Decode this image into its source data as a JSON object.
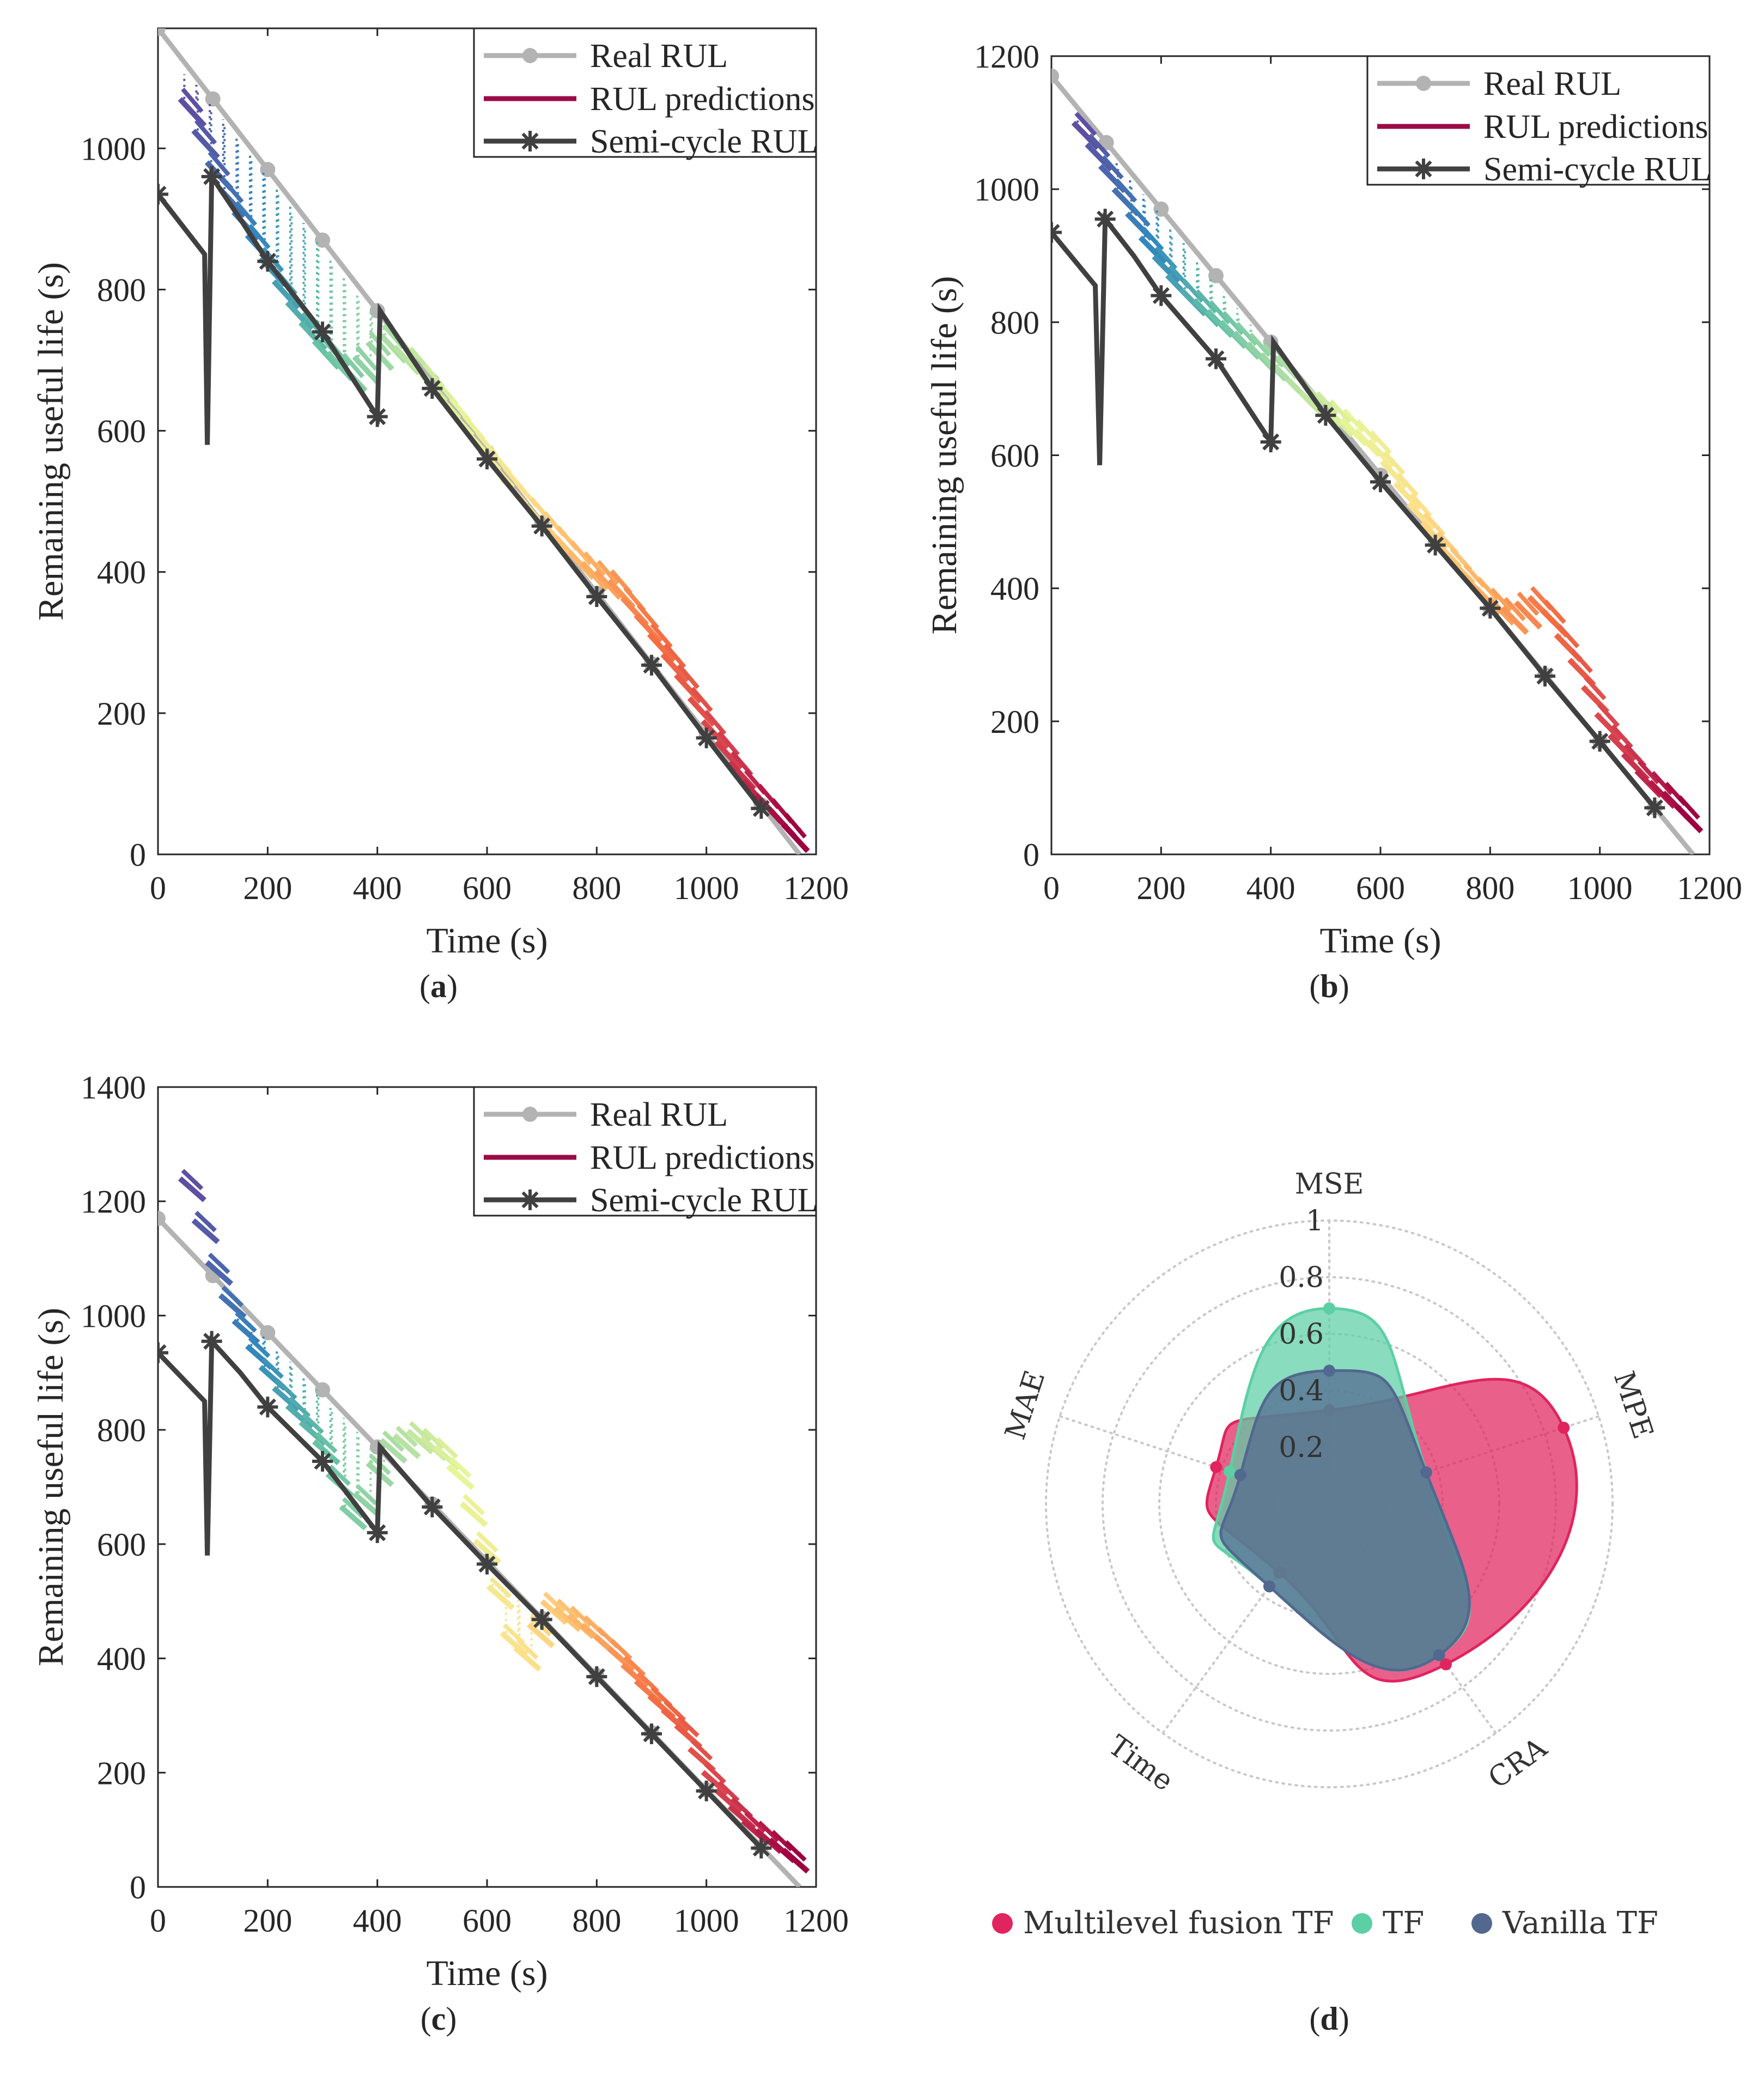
{
  "chart_data": [
    {
      "id": "a",
      "type": "line",
      "caption": "a",
      "xlabel": "Time (s)",
      "ylabel": "Remaining useful life (s)",
      "xlim": [
        0,
        1200
      ],
      "ylim": [
        0,
        1170
      ],
      "xticks": [
        "0",
        "200",
        "400",
        "600",
        "800",
        "1000",
        "1200"
      ],
      "yticks": [
        "0",
        "200",
        "400",
        "600",
        "800",
        "1000"
      ],
      "legend": [
        "Real RUL",
        "RUL predictions",
        "Semi-cycle RUL"
      ],
      "series": [
        {
          "name": "Real RUL",
          "x": [
            0,
            100,
            200,
            300,
            400,
            500,
            600,
            700,
            800,
            900,
            1000,
            1100,
            1170
          ],
          "y": [
            1170,
            1070,
            970,
            870,
            770,
            670,
            570,
            470,
            370,
            270,
            170,
            70,
            0
          ]
        },
        {
          "name": "Semi-cycle RUL",
          "x": [
            0,
            85,
            90,
            98,
            150,
            200,
            300,
            400,
            405,
            500,
            600,
            700,
            800,
            900,
            1000,
            1100
          ],
          "y": [
            935,
            850,
            580,
            960,
            900,
            840,
            740,
            620,
            770,
            660,
            560,
            465,
            365,
            268,
            165,
            65
          ]
        },
        {
          "name": "RUL predictions",
          "x": [
            40,
            100,
            160,
            220,
            280,
            340,
            400,
            460,
            520,
            580,
            640,
            700,
            760,
            820,
            880,
            940,
            1000,
            1060,
            1120,
            1160
          ],
          "y": [
            1070,
            960,
            880,
            800,
            730,
            690,
            740,
            700,
            640,
            580,
            520,
            470,
            420,
            390,
            330,
            260,
            180,
            110,
            60,
            25
          ]
        }
      ]
    },
    {
      "id": "b",
      "type": "line",
      "caption": "b",
      "xlabel": "Time (s)",
      "ylabel": "Remaining useful life (s)",
      "xlim": [
        0,
        1200
      ],
      "ylim": [
        0,
        1200
      ],
      "xticks": [
        "0",
        "200",
        "400",
        "600",
        "800",
        "1000",
        "1200"
      ],
      "yticks": [
        "0",
        "200",
        "400",
        "600",
        "800",
        "1000",
        "1200"
      ],
      "legend": [
        "Real RUL",
        "RUL predictions",
        "Semi-cycle RUL"
      ],
      "series": [
        {
          "name": "Real RUL",
          "x": [
            0,
            100,
            200,
            300,
            400,
            500,
            600,
            700,
            800,
            900,
            1000,
            1100,
            1170
          ],
          "y": [
            1170,
            1070,
            970,
            870,
            770,
            670,
            570,
            470,
            370,
            270,
            170,
            70,
            0
          ]
        },
        {
          "name": "Semi-cycle RUL",
          "x": [
            0,
            80,
            88,
            98,
            150,
            200,
            300,
            400,
            405,
            500,
            600,
            700,
            800,
            900,
            1000,
            1100
          ],
          "y": [
            935,
            855,
            585,
            955,
            900,
            840,
            745,
            620,
            770,
            660,
            560,
            465,
            370,
            268,
            170,
            70
          ]
        },
        {
          "name": "RUL predictions",
          "x": [
            40,
            100,
            160,
            220,
            280,
            340,
            400,
            460,
            520,
            580,
            640,
            700,
            760,
            820,
            880,
            940,
            1000,
            1060,
            1120,
            1160
          ],
          "y": [
            1100,
            1020,
            930,
            860,
            820,
            780,
            740,
            690,
            660,
            620,
            540,
            470,
            410,
            370,
            390,
            300,
            200,
            130,
            90,
            55
          ]
        }
      ]
    },
    {
      "id": "c",
      "type": "line",
      "caption": "c",
      "xlabel": "Time (s)",
      "ylabel": "Remaining useful life (s)",
      "xlim": [
        0,
        1200
      ],
      "ylim": [
        0,
        1400
      ],
      "xticks": [
        "0",
        "200",
        "400",
        "600",
        "800",
        "1000",
        "1200"
      ],
      "yticks": [
        "0",
        "200",
        "400",
        "600",
        "800",
        "1000",
        "1200",
        "1400"
      ],
      "legend": [
        "Real RUL",
        "RUL predictions",
        "Semi-cycle RUL"
      ],
      "series": [
        {
          "name": "Real RUL",
          "x": [
            0,
            100,
            200,
            300,
            400,
            500,
            600,
            700,
            800,
            900,
            1000,
            1100,
            1170
          ],
          "y": [
            1170,
            1070,
            970,
            870,
            770,
            670,
            570,
            470,
            370,
            270,
            170,
            70,
            0
          ]
        },
        {
          "name": "Semi-cycle RUL",
          "x": [
            0,
            85,
            90,
            98,
            150,
            200,
            300,
            400,
            405,
            500,
            600,
            700,
            800,
            900,
            1000,
            1100
          ],
          "y": [
            935,
            850,
            580,
            955,
            900,
            840,
            745,
            620,
            770,
            665,
            565,
            468,
            368,
            268,
            168,
            68
          ]
        },
        {
          "name": "RUL predictions",
          "x": [
            40,
            100,
            160,
            220,
            280,
            340,
            400,
            460,
            520,
            580,
            640,
            700,
            760,
            820,
            880,
            940,
            1000,
            1060,
            1120,
            1160
          ],
          "y": [
            1240,
            1060,
            950,
            860,
            790,
            650,
            780,
            800,
            760,
            600,
            400,
            500,
            470,
            420,
            350,
            290,
            190,
            120,
            80,
            50
          ]
        }
      ]
    },
    {
      "id": "d",
      "type": "radar",
      "caption": "d",
      "axes": [
        "MSE",
        "MPE",
        "CRA",
        "Time",
        "MAE"
      ],
      "rmax": 1,
      "ring_labels": [
        "0.2",
        "0.4",
        "0.6",
        "0.8",
        "1"
      ],
      "legend": [
        "Multilevel fusion TF",
        "TF",
        "Vanilla TF"
      ],
      "series": [
        {
          "name": "Multilevel fusion TF",
          "color": "#e0245e",
          "values": [
            0.33,
            0.87,
            0.7,
            0.3,
            0.42
          ]
        },
        {
          "name": "TF",
          "color": "#5ccfa5",
          "values": [
            0.69,
            0.36,
            0.66,
            0.36,
            0.37
          ]
        },
        {
          "name": "Vanilla TF",
          "color": "#52688f",
          "values": [
            0.47,
            0.36,
            0.66,
            0.36,
            0.33
          ]
        }
      ]
    }
  ],
  "colors": {
    "real": "#b3b3b3",
    "pred": "#9b0b45",
    "semi": "#404040",
    "spectral": [
      "#5e4fa2",
      "#3288bd",
      "#66c2a5",
      "#abdda4",
      "#e6f598",
      "#fee08b",
      "#fdae61",
      "#f46d43",
      "#d53e4f",
      "#9e0142"
    ]
  }
}
